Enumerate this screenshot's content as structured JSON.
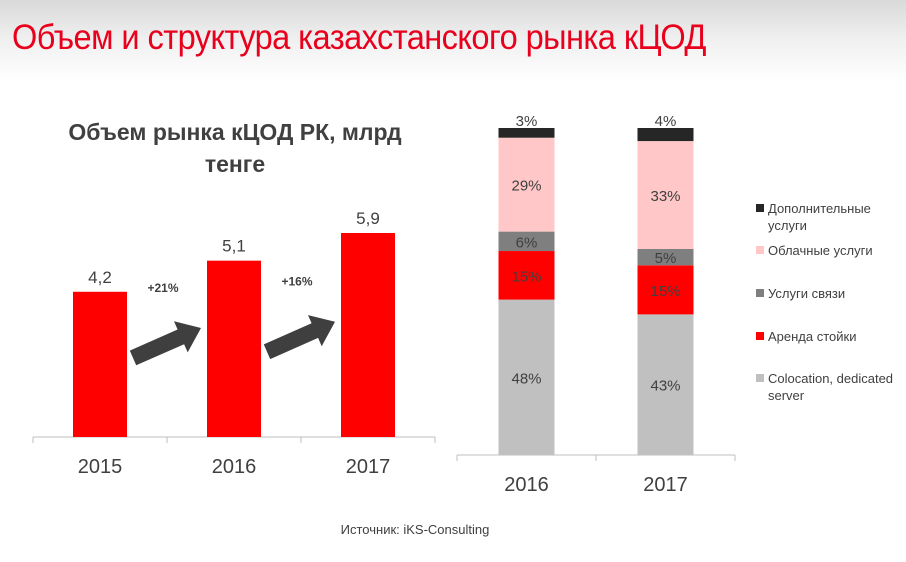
{
  "slide": {
    "title": "Объем и структура казахстанского рынка кЦОД",
    "source": "Источник: iKS-Consulting",
    "colors": {
      "title": "#e8001c",
      "text": "#404040",
      "bar_red": "#ff0000",
      "arrow": "#3f3f3f"
    }
  },
  "chart_data": [
    {
      "type": "bar",
      "title_line1": "Объем рынка кЦОД РК, млрд",
      "title_line2": "тенге",
      "categories": [
        "2015",
        "2016",
        "2017"
      ],
      "values": [
        4.2,
        5.1,
        5.9
      ],
      "value_labels": [
        "4,2",
        "5,1",
        "5,9"
      ],
      "ylim": [
        0,
        6.5
      ],
      "growth_annotations": [
        {
          "from": "2015",
          "to": "2016",
          "label": "+21%"
        },
        {
          "from": "2016",
          "to": "2017",
          "label": "+16%"
        }
      ],
      "color": "#ff0000"
    },
    {
      "type": "bar",
      "stacked": true,
      "percent": true,
      "categories": [
        "2016",
        "2017"
      ],
      "series": [
        {
          "name": "Colocation, dedicated server",
          "color": "#c0c0c0",
          "values": [
            48,
            43
          ],
          "labels": [
            "48%",
            "43%"
          ]
        },
        {
          "name": "Аренда стойки",
          "color": "#ff0000",
          "values": [
            15,
            15
          ],
          "labels": [
            "15%",
            "15%"
          ]
        },
        {
          "name": "Услуги связи",
          "color": "#7f7f7f",
          "values": [
            6,
            5
          ],
          "labels": [
            "6%",
            "5%"
          ]
        },
        {
          "name": "Облачные услуги",
          "color": "#ffc7c7",
          "values": [
            29,
            33
          ],
          "labels": [
            "29%",
            "33%"
          ]
        },
        {
          "name": "Дополнительные услуги",
          "color": "#262626",
          "values": [
            3,
            4
          ],
          "labels": [
            "3%",
            "4%"
          ]
        }
      ],
      "legend_position": "right"
    }
  ]
}
